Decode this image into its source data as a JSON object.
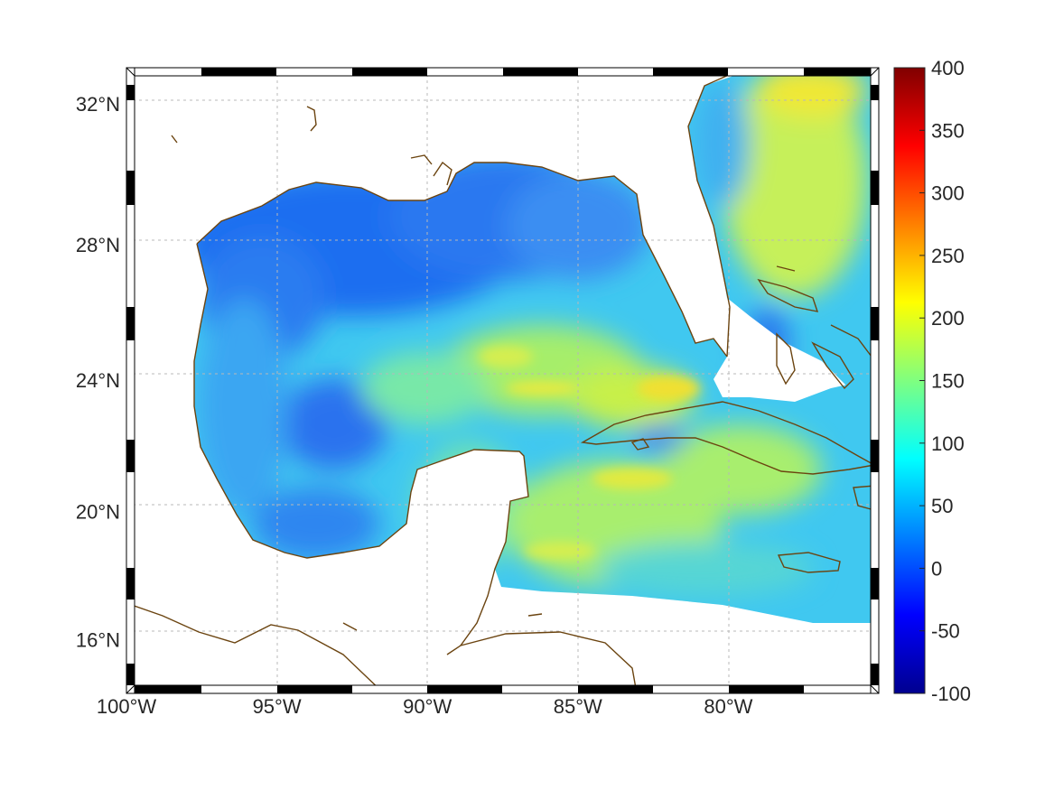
{
  "map": {
    "projection": "mercator",
    "lon_range": [
      -100,
      -75
    ],
    "lat_range": [
      14.3,
      33
    ],
    "grid": true,
    "coast_color": "#6b4410",
    "frame_style": "alternating black/white",
    "lon_ticks": [
      {
        "value": -100,
        "label": "100°W"
      },
      {
        "value": -95,
        "label": "95°W"
      },
      {
        "value": -90,
        "label": "90°W"
      },
      {
        "value": -85,
        "label": "85°W"
      },
      {
        "value": -80,
        "label": "80°W"
      }
    ],
    "lat_ticks": [
      {
        "value": 32,
        "label": "32°N"
      },
      {
        "value": 28,
        "label": "28°N"
      },
      {
        "value": 24,
        "label": "24°N"
      },
      {
        "value": 20,
        "label": "20°N"
      },
      {
        "value": 16,
        "label": "16°N"
      }
    ]
  },
  "colorbar": {
    "colormap": "jet",
    "range": [
      -100,
      400
    ],
    "position": "right",
    "ticks": [
      {
        "value": 400,
        "label": "400"
      },
      {
        "value": 350,
        "label": "350"
      },
      {
        "value": 300,
        "label": "300"
      },
      {
        "value": 250,
        "label": "250"
      },
      {
        "value": 200,
        "label": "200"
      },
      {
        "value": 150,
        "label": "150"
      },
      {
        "value": 100,
        "label": "100"
      },
      {
        "value": 50,
        "label": "50"
      },
      {
        "value": 0,
        "label": "0"
      },
      {
        "value": -50,
        "label": "-50"
      },
      {
        "value": -100,
        "label": "-100"
      }
    ]
  },
  "field": {
    "description_values": "approximate field value ranges",
    "northern_gulf": 20,
    "central_gulf": 130,
    "florida_atlantic": 170,
    "caribbean": 150
  }
}
